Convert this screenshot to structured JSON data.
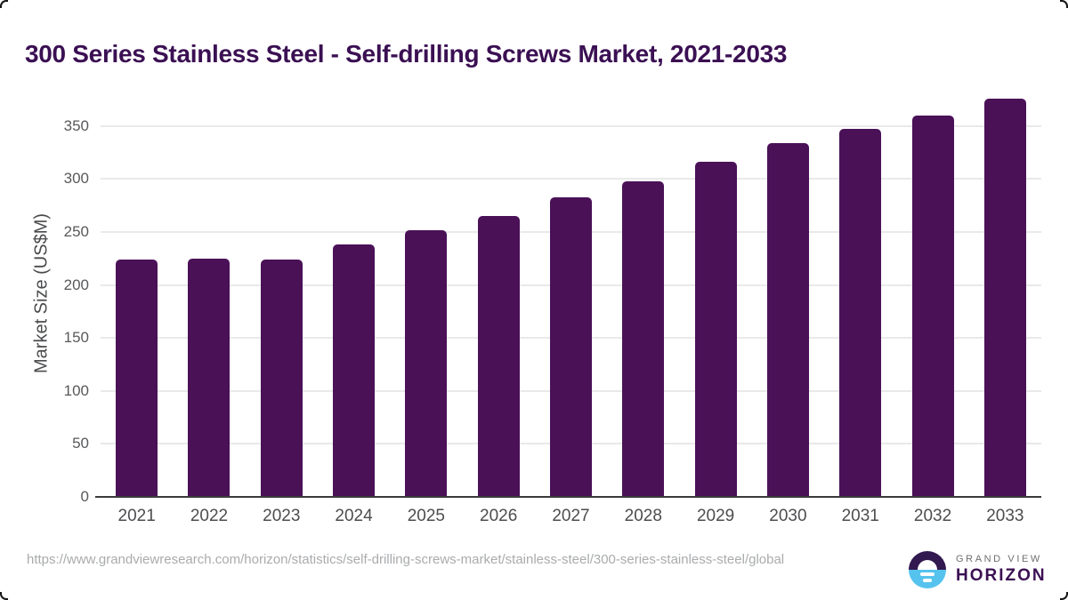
{
  "page": {
    "title": "300 Series Stainless Steel - Self-drilling Screws Market, 2021-2033",
    "source_url": "https://www.grandviewresearch.com/horizon/statistics/self-drilling-screws-market/stainless-steel/300-series-stainless-steel/global"
  },
  "brand": {
    "top": "GRAND VIEW",
    "bottom": "HORIZON"
  },
  "colors": {
    "bar": "#4A1157",
    "title": "#3B1053",
    "gridline": "#E9E9E9",
    "axis_line": "#3B3B3B",
    "y_tick": "#58595B",
    "x_tick": "#4C4D4F",
    "axis_title": "#4A4B4D",
    "url_text": "#A9ABAD",
    "brand_gray": "#6E6F72",
    "brand_purple": "#3B1053",
    "logo_dark": "#32194F",
    "logo_blue": "#55C3EE"
  },
  "chart_data": {
    "type": "bar",
    "title": "300 Series Stainless Steel - Self-drilling Screws Market, 2021-2033",
    "categories": [
      "2021",
      "2022",
      "2023",
      "2024",
      "2025",
      "2026",
      "2027",
      "2028",
      "2029",
      "2030",
      "2031",
      "2032",
      "2033"
    ],
    "values": [
      224,
      225,
      224,
      238,
      252,
      265,
      283,
      298,
      316,
      334,
      347,
      360,
      376
    ],
    "xlabel": "",
    "ylabel": "Market Size (US$M)",
    "ylim": [
      0,
      385
    ],
    "y_ticks": [
      0,
      50,
      100,
      150,
      200,
      250,
      300,
      350
    ],
    "grid": true,
    "legend": false,
    "bar_color": "#4A1157"
  }
}
